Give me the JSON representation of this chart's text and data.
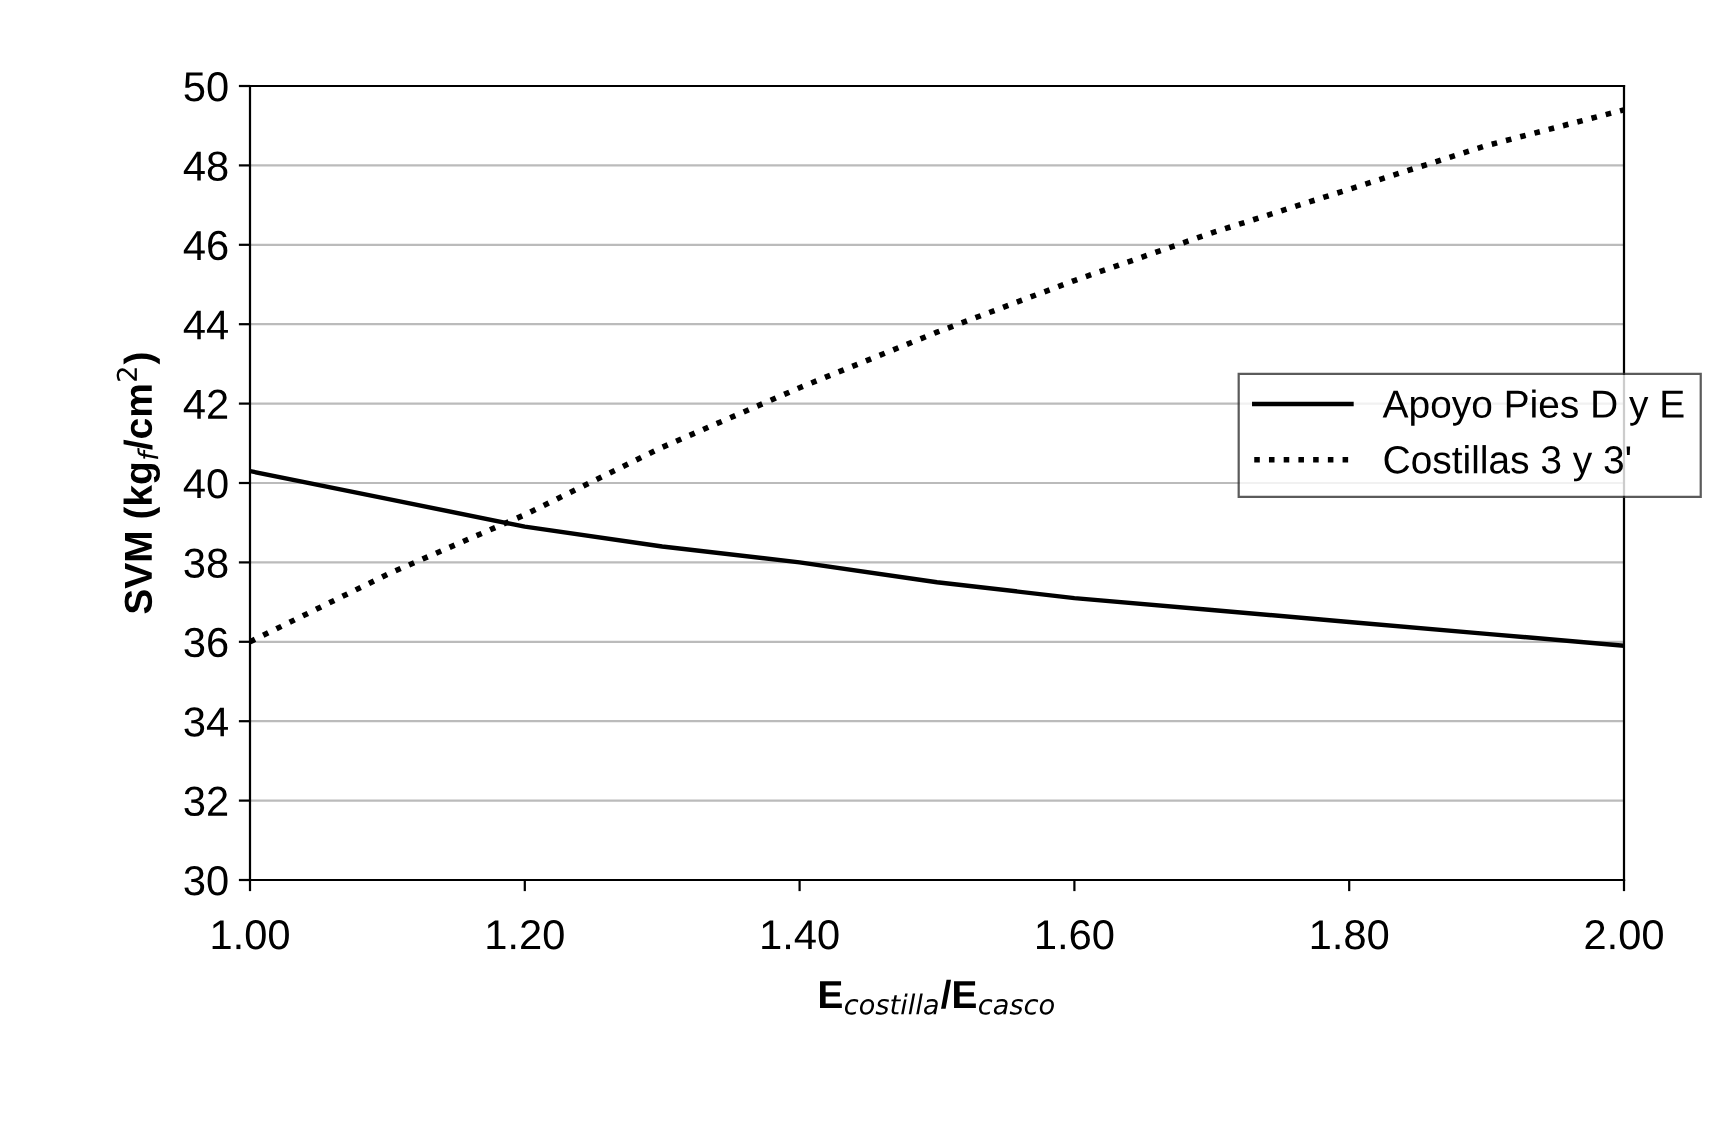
{
  "chart_data": {
    "type": "line",
    "xlabel": "E$_{costilla}$/E$_{casco}$",
    "ylabel": "SVM (kg$_{f}$/cm$^{2}$)",
    "series": [
      {
        "name": "Apoyo Pies D y E",
        "color": "#000000",
        "line_style": "solid",
        "x": [
          1.0,
          1.1,
          1.2,
          1.3,
          1.4,
          1.5,
          1.6,
          1.7,
          1.8,
          1.9,
          2.0
        ],
        "values": [
          40.3,
          39.6,
          38.9,
          38.4,
          38.0,
          37.5,
          37.1,
          36.8,
          36.5,
          36.2,
          35.9
        ]
      },
      {
        "name": "Costillas 3 y 3'",
        "color": "#000000",
        "line_style": "dotted",
        "x": [
          1.0,
          1.1,
          1.2,
          1.3,
          1.4,
          1.5,
          1.6,
          1.7,
          1.8,
          1.9,
          2.0
        ],
        "values": [
          36.0,
          37.7,
          39.2,
          40.9,
          42.4,
          43.8,
          45.1,
          46.3,
          47.4,
          48.5,
          49.4
        ]
      }
    ],
    "xlim": [
      1.0,
      2.0
    ],
    "xticks": [
      {
        "value": 1.0,
        "label": "1.00"
      },
      {
        "value": 1.2,
        "label": "1.20"
      },
      {
        "value": 1.4,
        "label": "1.40"
      },
      {
        "value": 1.6,
        "label": "1.60"
      },
      {
        "value": 1.8,
        "label": "1.80"
      },
      {
        "value": 2.0,
        "label": "2.00"
      }
    ],
    "ylim": [
      30,
      50
    ],
    "yticks": [
      30,
      32,
      34,
      36,
      38,
      40,
      42,
      44,
      46,
      48,
      50
    ],
    "grid": "y",
    "legend": "right",
    "marker": "none"
  }
}
